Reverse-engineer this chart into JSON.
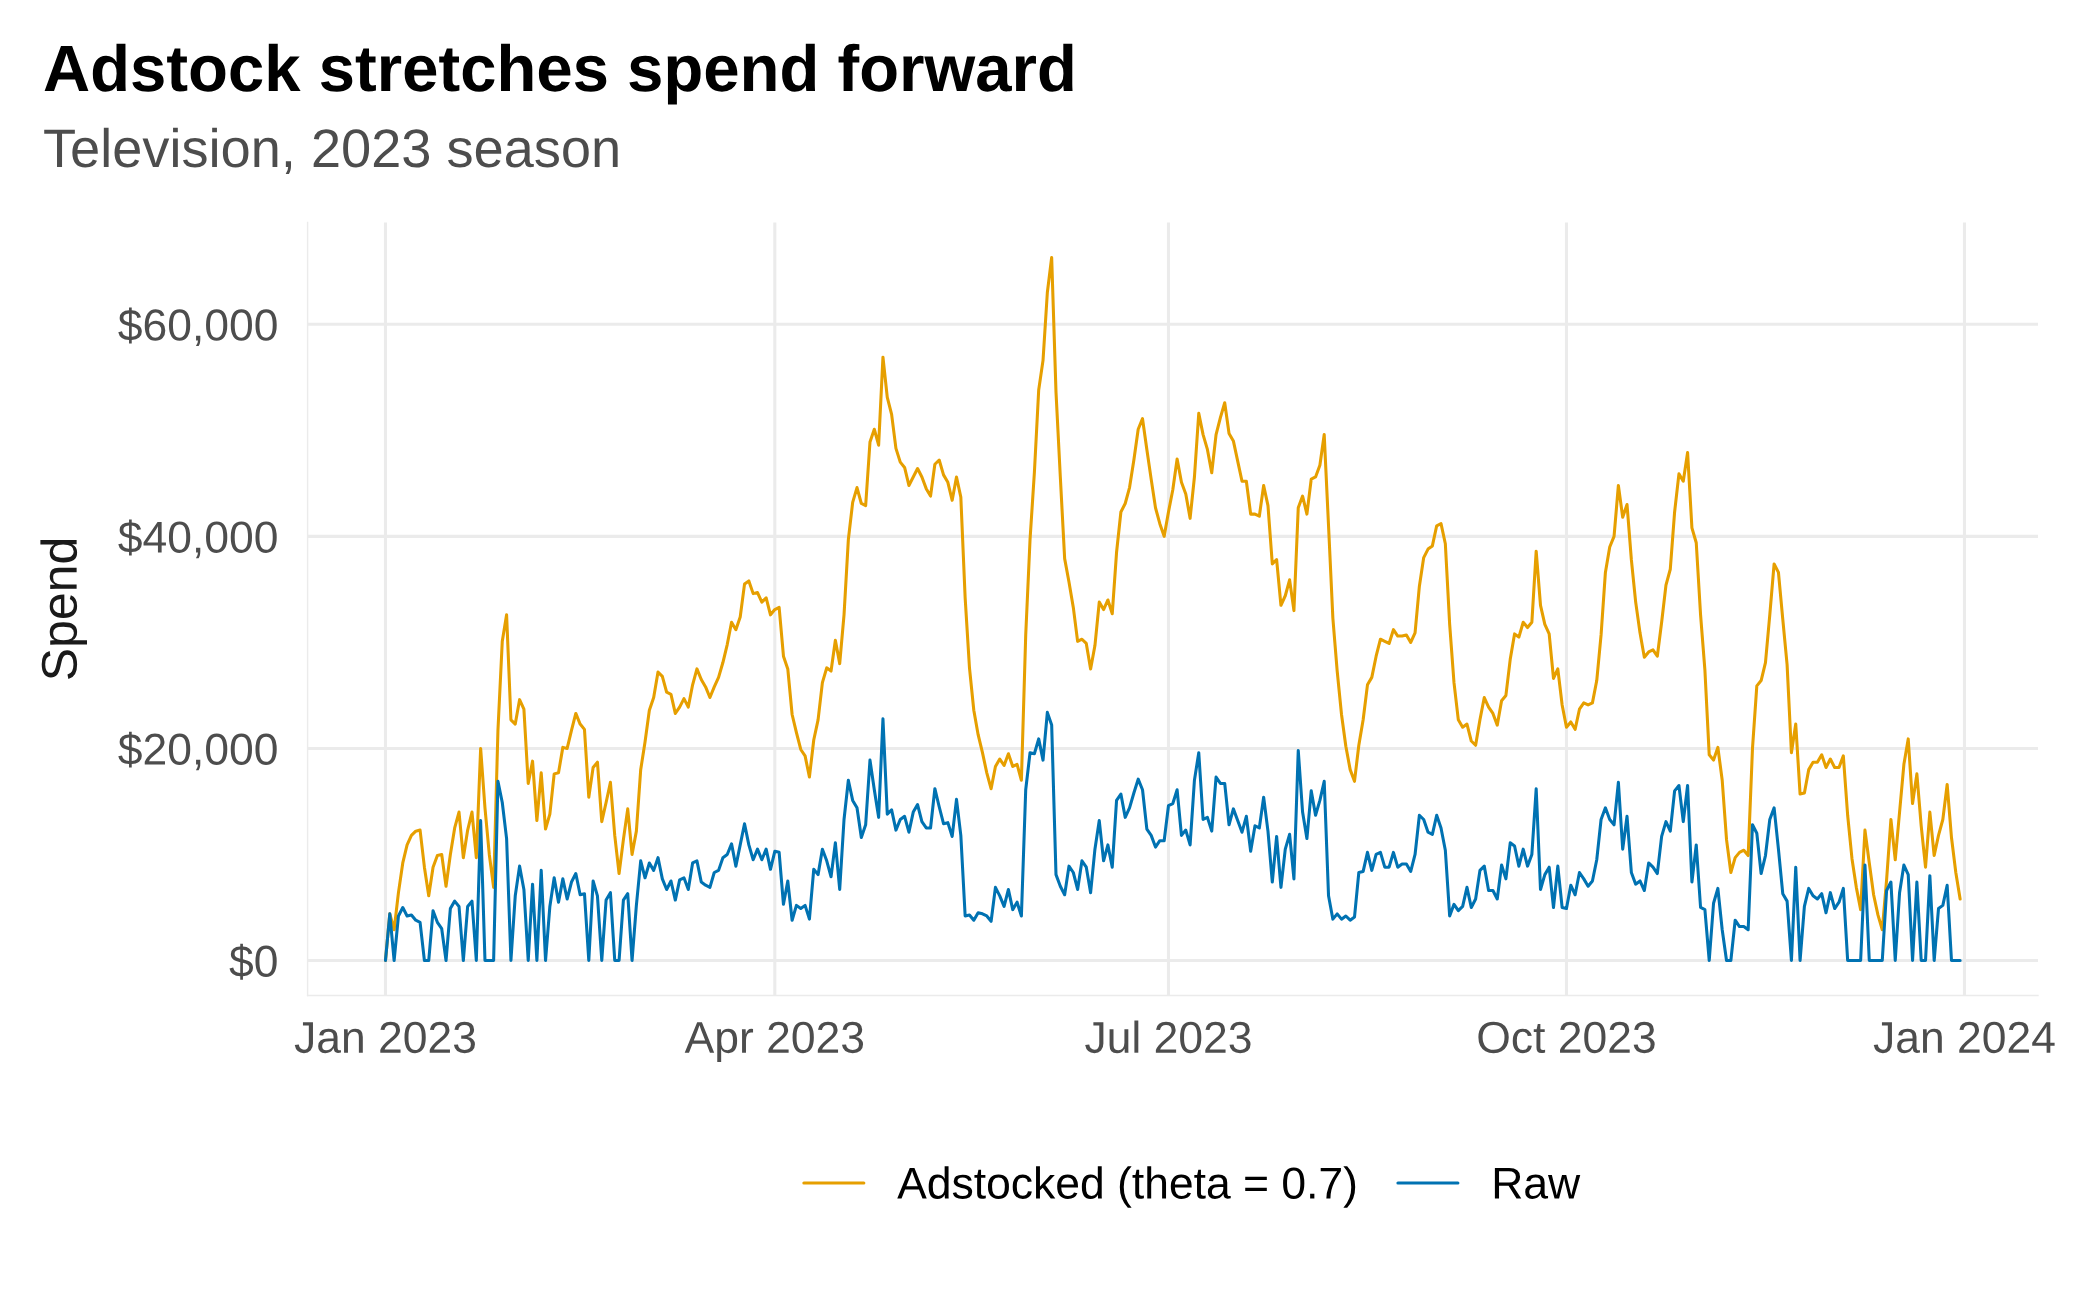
{
  "chart_data": {
    "type": "line",
    "title": "Adstock stretches spend forward",
    "subtitle": "Television, 2023 season",
    "ylabel": "Spend",
    "x": [
      "2023-01-01",
      "2023-01-02",
      "2023-01-03",
      "2023-01-04",
      "2023-01-05",
      "2023-01-06",
      "2023-01-07",
      "2023-01-08",
      "2023-01-09",
      "2023-01-10",
      "2023-01-11",
      "2023-01-12",
      "2023-01-13",
      "2023-01-14",
      "2023-01-15",
      "2023-01-16",
      "2023-01-17",
      "2023-01-18",
      "2023-01-19",
      "2023-01-20",
      "2023-01-21",
      "2023-01-22",
      "2023-01-23",
      "2023-01-24",
      "2023-01-25",
      "2023-01-26",
      "2023-01-27",
      "2023-01-28",
      "2023-01-29",
      "2023-01-30",
      "2023-01-31",
      "2023-02-01",
      "2023-02-02",
      "2023-02-03",
      "2023-02-04",
      "2023-02-05",
      "2023-02-06",
      "2023-02-07",
      "2023-02-08",
      "2023-02-09",
      "2023-02-10",
      "2023-02-11",
      "2023-02-12",
      "2023-02-13",
      "2023-02-14",
      "2023-02-15",
      "2023-02-16",
      "2023-02-17",
      "2023-02-18",
      "2023-02-19",
      "2023-02-20",
      "2023-02-21",
      "2023-02-22",
      "2023-02-23",
      "2023-02-24",
      "2023-02-25",
      "2023-02-26",
      "2023-02-27",
      "2023-02-28",
      "2023-03-01",
      "2023-03-02",
      "2023-03-03",
      "2023-03-04",
      "2023-03-05",
      "2023-03-06",
      "2023-03-07",
      "2023-03-08",
      "2023-03-09",
      "2023-03-10",
      "2023-03-11",
      "2023-03-12",
      "2023-03-13",
      "2023-03-14",
      "2023-03-15",
      "2023-03-16",
      "2023-03-17",
      "2023-03-18",
      "2023-03-19",
      "2023-03-20",
      "2023-03-21",
      "2023-03-22",
      "2023-03-23",
      "2023-03-24",
      "2023-03-25",
      "2023-03-26",
      "2023-03-27",
      "2023-03-28",
      "2023-03-29",
      "2023-03-30",
      "2023-03-31",
      "2023-04-01",
      "2023-04-02",
      "2023-04-03",
      "2023-04-04",
      "2023-04-05",
      "2023-04-06",
      "2023-04-07",
      "2023-04-08",
      "2023-04-09",
      "2023-04-10",
      "2023-04-11",
      "2023-04-12",
      "2023-04-13",
      "2023-04-14",
      "2023-04-15",
      "2023-04-16",
      "2023-04-17",
      "2023-04-18",
      "2023-04-19",
      "2023-04-20",
      "2023-04-21",
      "2023-04-22",
      "2023-04-23",
      "2023-04-24",
      "2023-04-25",
      "2023-04-26",
      "2023-04-27",
      "2023-04-28",
      "2023-04-29",
      "2023-04-30",
      "2023-05-01",
      "2023-05-02",
      "2023-05-03",
      "2023-05-04",
      "2023-05-05",
      "2023-05-06",
      "2023-05-07",
      "2023-05-08",
      "2023-05-09",
      "2023-05-10",
      "2023-05-11",
      "2023-05-12",
      "2023-05-13",
      "2023-05-14",
      "2023-05-15",
      "2023-05-16",
      "2023-05-17",
      "2023-05-18",
      "2023-05-19",
      "2023-05-20",
      "2023-05-21",
      "2023-05-22",
      "2023-05-23",
      "2023-05-24",
      "2023-05-25",
      "2023-05-26",
      "2023-05-27",
      "2023-05-28",
      "2023-05-29",
      "2023-05-30",
      "2023-05-31",
      "2023-06-01",
      "2023-06-02",
      "2023-06-03",
      "2023-06-04",
      "2023-06-05",
      "2023-06-06",
      "2023-06-07",
      "2023-06-08",
      "2023-06-09",
      "2023-06-10",
      "2023-06-11",
      "2023-06-12",
      "2023-06-13",
      "2023-06-14",
      "2023-06-15",
      "2023-06-16",
      "2023-06-17",
      "2023-06-18",
      "2023-06-19",
      "2023-06-20",
      "2023-06-21",
      "2023-06-22",
      "2023-06-23",
      "2023-06-24",
      "2023-06-25",
      "2023-06-26",
      "2023-06-27",
      "2023-06-28",
      "2023-06-29",
      "2023-06-30",
      "2023-07-01",
      "2023-07-02",
      "2023-07-03",
      "2023-07-04",
      "2023-07-05",
      "2023-07-06",
      "2023-07-07",
      "2023-07-08",
      "2023-07-09",
      "2023-07-10",
      "2023-07-11",
      "2023-07-12",
      "2023-07-13",
      "2023-07-14",
      "2023-07-15",
      "2023-07-16",
      "2023-07-17",
      "2023-07-18",
      "2023-07-19",
      "2023-07-20",
      "2023-07-21",
      "2023-07-22",
      "2023-07-23",
      "2023-07-24",
      "2023-07-25",
      "2023-07-26",
      "2023-07-27",
      "2023-07-28",
      "2023-07-29",
      "2023-07-30",
      "2023-07-31",
      "2023-08-01",
      "2023-08-02",
      "2023-08-03",
      "2023-08-04",
      "2023-08-05",
      "2023-08-06",
      "2023-08-07",
      "2023-08-08",
      "2023-08-09",
      "2023-08-10",
      "2023-08-11",
      "2023-08-12",
      "2023-08-13",
      "2023-08-14",
      "2023-08-15",
      "2023-08-16",
      "2023-08-17",
      "2023-08-18",
      "2023-08-19",
      "2023-08-20",
      "2023-08-21",
      "2023-08-22",
      "2023-08-23",
      "2023-08-24",
      "2023-08-25",
      "2023-08-26",
      "2023-08-27",
      "2023-08-28",
      "2023-08-29",
      "2023-08-30",
      "2023-08-31",
      "2023-09-01",
      "2023-09-02",
      "2023-09-03",
      "2023-09-04",
      "2023-09-05",
      "2023-09-06",
      "2023-09-07",
      "2023-09-08",
      "2023-09-09",
      "2023-09-10",
      "2023-09-11",
      "2023-09-12",
      "2023-09-13",
      "2023-09-14",
      "2023-09-15",
      "2023-09-16",
      "2023-09-17",
      "2023-09-18",
      "2023-09-19",
      "2023-09-20",
      "2023-09-21",
      "2023-09-22",
      "2023-09-23",
      "2023-09-24",
      "2023-09-25",
      "2023-09-26",
      "2023-09-27",
      "2023-09-28",
      "2023-09-29",
      "2023-09-30",
      "2023-10-01",
      "2023-10-02",
      "2023-10-03",
      "2023-10-04",
      "2023-10-05",
      "2023-10-06",
      "2023-10-07",
      "2023-10-08",
      "2023-10-09",
      "2023-10-10",
      "2023-10-11",
      "2023-10-12",
      "2023-10-13",
      "2023-10-14",
      "2023-10-15",
      "2023-10-16",
      "2023-10-17",
      "2023-10-18",
      "2023-10-19",
      "2023-10-20",
      "2023-10-21",
      "2023-10-22",
      "2023-10-23",
      "2023-10-24",
      "2023-10-25",
      "2023-10-26",
      "2023-10-27",
      "2023-10-28",
      "2023-10-29",
      "2023-10-30",
      "2023-10-31",
      "2023-11-01",
      "2023-11-02",
      "2023-11-03",
      "2023-11-04",
      "2023-11-05",
      "2023-11-06",
      "2023-11-07",
      "2023-11-08",
      "2023-11-09",
      "2023-11-10",
      "2023-11-11",
      "2023-11-12",
      "2023-11-13",
      "2023-11-14",
      "2023-11-15",
      "2023-11-16",
      "2023-11-17",
      "2023-11-18",
      "2023-11-19",
      "2023-11-20",
      "2023-11-21",
      "2023-11-22",
      "2023-11-23",
      "2023-11-24",
      "2023-11-25",
      "2023-11-26",
      "2023-11-27",
      "2023-11-28",
      "2023-11-29",
      "2023-11-30",
      "2023-12-01",
      "2023-12-02",
      "2023-12-03",
      "2023-12-04",
      "2023-12-05",
      "2023-12-06",
      "2023-12-07",
      "2023-12-08",
      "2023-12-09",
      "2023-12-10",
      "2023-12-11",
      "2023-12-12",
      "2023-12-13",
      "2023-12-14",
      "2023-12-15",
      "2023-12-16",
      "2023-12-17",
      "2023-12-18",
      "2023-12-19",
      "2023-12-20",
      "2023-12-21",
      "2023-12-22",
      "2023-12-23",
      "2023-12-24",
      "2023-12-25",
      "2023-12-26",
      "2023-12-27",
      "2023-12-28",
      "2023-12-29",
      "2023-12-30",
      "2023-12-31"
    ],
    "series": [
      {
        "name": "Adstocked (theta = 0.7)",
        "color": "#e69f00",
        "values": [
          0,
          4400,
          2900,
          6400,
          9200,
          10900,
          11800,
          12200,
          12300,
          8800,
          6100,
          8800,
          9900,
          10000,
          7000,
          10000,
          12500,
          14000,
          9700,
          12300,
          14000,
          9700,
          20000,
          14400,
          10000,
          6900,
          21700,
          30100,
          32600,
          22700,
          22300,
          24600,
          23700,
          16700,
          18800,
          13200,
          17700,
          12400,
          13800,
          17600,
          17700,
          20100,
          20000,
          21700,
          23300,
          22300,
          21800,
          15400,
          18200,
          18700,
          13100,
          14900,
          16800,
          11800,
          8200,
          11400,
          14300,
          10000,
          12200,
          18000,
          20600,
          23600,
          24800,
          27200,
          26800,
          25300,
          25100,
          23300,
          23900,
          24700,
          23900,
          26000,
          27500,
          26500,
          25800,
          24800,
          25800,
          26700,
          28100,
          29800,
          31900,
          31200,
          32400,
          35500,
          35800,
          34600,
          34700,
          33800,
          34200,
          32600,
          33100,
          33300,
          28700,
          27500,
          23200,
          21500,
          19900,
          19300,
          17300,
          20800,
          22700,
          26200,
          27600,
          27300,
          30200,
          28000,
          32600,
          39700,
          43200,
          44600,
          43100,
          42900,
          48900,
          50100,
          48600,
          56900,
          53100,
          51500,
          48300,
          47000,
          46500,
          44800,
          45600,
          46400,
          45600,
          44500,
          43800,
          46800,
          47200,
          45800,
          45100,
          43400,
          45600,
          43700,
          34200,
          27600,
          23600,
          21300,
          19600,
          17700,
          16200,
          18300,
          19000,
          18400,
          19500,
          18300,
          18500,
          17000,
          30700,
          39700,
          46000,
          53800,
          56600,
          63000,
          66300,
          53600,
          45600,
          37900,
          35700,
          33300,
          30100,
          30300,
          29900,
          27500,
          29700,
          33800,
          33100,
          34000,
          32700,
          38500,
          42300,
          43100,
          44600,
          47200,
          50100,
          51100,
          48200,
          45400,
          42700,
          41200,
          40000,
          42300,
          44400,
          47300,
          45100,
          44000,
          41700,
          45600,
          51600,
          49600,
          48200,
          46000,
          49600,
          51200,
          52600,
          49700,
          49000,
          47100,
          45200,
          45200,
          42100,
          42100,
          41900,
          44800,
          42900,
          37400,
          37800,
          33500,
          34400,
          35900,
          33000,
          42700,
          43800,
          42100,
          45400,
          45600,
          46700,
          49600,
          41000,
          32300,
          27300,
          23200,
          20200,
          18000,
          16900,
          20300,
          22700,
          26000,
          26700,
          28700,
          30300,
          30100,
          29900,
          31200,
          30600,
          30600,
          30700,
          30000,
          30900,
          35300,
          38000,
          38800,
          39100,
          41000,
          41200,
          39300,
          31700,
          26200,
          22700,
          22000,
          22300,
          20700,
          20300,
          22700,
          24800,
          23900,
          23300,
          22200,
          24500,
          25000,
          28400,
          30800,
          30500,
          31900,
          31400,
          31900,
          38600,
          33500,
          31700,
          30800,
          26600,
          27500,
          24100,
          22000,
          22500,
          21800,
          23700,
          24300,
          24100,
          24300,
          26400,
          30700,
          36600,
          39000,
          40000,
          44800,
          41800,
          43000,
          37800,
          33800,
          30900,
          28600,
          29100,
          29300,
          28700,
          31900,
          35400,
          36900,
          42300,
          45900,
          45200,
          47900,
          40800,
          39400,
          32600,
          27400,
          19400,
          18900,
          20100,
          17000,
          11400,
          8300,
          9700,
          10200,
          10400,
          9900,
          20000,
          25900,
          26400,
          28100,
          32600,
          37400,
          36600,
          32200,
          27900,
          19600,
          22300,
          15700,
          15800,
          18000,
          18700,
          18700,
          19400,
          18200,
          19000,
          18200,
          18200,
          19300,
          13700,
          9600,
          6900,
          4800,
          12300,
          9200,
          6200,
          4300,
          2900,
          7600,
          13300,
          9500,
          14000,
          18500,
          20900,
          14800,
          17600,
          12700,
          8800,
          14000,
          9900,
          11800,
          13300,
          16600,
          11600,
          8300,
          5800
        ]
      },
      {
        "name": "Raw",
        "color": "#0072b2",
        "values": [
          0,
          4400,
          0,
          4200,
          5000,
          4200,
          4300,
          3800,
          3600,
          0,
          0,
          4700,
          3600,
          3000,
          0,
          4900,
          5600,
          5100,
          0,
          5100,
          5600,
          0,
          13200,
          0,
          0,
          0,
          16900,
          14900,
          11500,
          0,
          6100,
          8900,
          6700,
          0,
          7200,
          0,
          8500,
          0,
          5100,
          7800,
          5500,
          7700,
          5800,
          7400,
          8200,
          6200,
          6300,
          0,
          7500,
          6100,
          0,
          5700,
          6400,
          0,
          0,
          5700,
          6300,
          0,
          5200,
          9400,
          7800,
          9200,
          8500,
          9700,
          7700,
          6700,
          7500,
          5700,
          7600,
          7800,
          6700,
          9200,
          9400,
          7400,
          7100,
          6900,
          8300,
          8500,
          9700,
          10000,
          11000,
          8900,
          10900,
          12900,
          10900,
          9500,
          10500,
          9500,
          10500,
          8600,
          10300,
          10200,
          5300,
          7500,
          3800,
          5200,
          4900,
          5200,
          3900,
          8600,
          8100,
          10500,
          9400,
          7900,
          11100,
          6700,
          13300,
          17000,
          15100,
          14400,
          11600,
          12800,
          18900,
          16100,
          13500,
          22800,
          13800,
          14200,
          12300,
          13300,
          13600,
          12100,
          14000,
          14700,
          13100,
          12500,
          12500,
          16200,
          14500,
          12900,
          13000,
          11700,
          15200,
          11800,
          4200,
          4300,
          3800,
          4500,
          4400,
          4200,
          3700,
          6900,
          6100,
          5100,
          6700,
          4800,
          5500,
          4200,
          16100,
          19600,
          19500,
          20900,
          18900,
          23400,
          22200,
          8100,
          7000,
          6200,
          8900,
          8300,
          6700,
          9400,
          8800,
          6400,
          10500,
          13200,
          9400,
          10900,
          8800,
          15100,
          15700,
          13500,
          14400,
          15800,
          17100,
          16100,
          12400,
          11800,
          10700,
          11300,
          11300,
          14600,
          14800,
          16100,
          11800,
          12300,
          10900,
          17000,
          19600,
          13300,
          13500,
          12200,
          17300,
          16700,
          16700,
          12800,
          14300,
          13200,
          12100,
          13600,
          10300,
          12700,
          12500,
          15400,
          12200,
          7400,
          11700,
          6900,
          10500,
          11900,
          7700,
          19800,
          14000,
          11500,
          16000,
          13700,
          15100,
          16900,
          6100,
          3900,
          4400,
          3900,
          4200,
          3800,
          4100,
          8300,
          8400,
          10200,
          8500,
          10000,
          10200,
          8800,
          8800,
          10200,
          8800,
          9100,
          9100,
          8400,
          10000,
          13700,
          13300,
          12100,
          11900,
          13700,
          12500,
          10400,
          4200,
          5300,
          4700,
          5100,
          6900,
          5000,
          5800,
          8500,
          8900,
          6600,
          6600,
          5800,
          9000,
          7700,
          11100,
          10800,
          8900,
          10500,
          8900,
          10000,
          16200,
          6700,
          8100,
          8800,
          5000,
          8900,
          5000,
          4900,
          7100,
          6200,
          8300,
          7700,
          7000,
          7500,
          9500,
          13300,
          14400,
          13300,
          12800,
          16800,
          10500,
          13600,
          8300,
          7200,
          7500,
          6600,
          9200,
          8800,
          8200,
          11700,
          13100,
          12200,
          16000,
          16500,
          13100,
          16500,
          7400,
          10900,
          5000,
          4800,
          0,
          5400,
          6800,
          2900,
          0,
          0,
          3800,
          3200,
          3200,
          2900,
          12800,
          12000,
          8200,
          9900,
          13300,
          14400,
          10500,
          6300,
          5600,
          0,
          8800,
          0,
          5100,
          6800,
          6100,
          5800,
          6300,
          4500,
          6400,
          4900,
          5500,
          6800,
          0,
          0,
          0,
          0,
          9000,
          0,
          0,
          0,
          0,
          6600,
          7400,
          0,
          6400,
          9000,
          8100,
          0,
          7400,
          0,
          0,
          8000,
          0,
          4900,
          5200,
          7100,
          0,
          0,
          0
        ]
      }
    ],
    "xlim": [
      "2022-12-14",
      "2024-01-18"
    ],
    "ylim": [
      -3300,
      69600
    ],
    "xticks": [
      {
        "value": "2023-01-01",
        "label": "Jan 2023"
      },
      {
        "value": "2023-04-01",
        "label": "Apr 2023"
      },
      {
        "value": "2023-07-01",
        "label": "Jul 2023"
      },
      {
        "value": "2023-10-01",
        "label": "Oct 2023"
      },
      {
        "value": "2024-01-01",
        "label": "Jan 2024"
      }
    ],
    "yticks": [
      {
        "value": 0,
        "label": "$0"
      },
      {
        "value": 20000,
        "label": "$20,000"
      },
      {
        "value": 40000,
        "label": "$40,000"
      },
      {
        "value": 60000,
        "label": "$60,000"
      }
    ],
    "grid": true,
    "legend": "bottom",
    "line_style": "solid"
  }
}
